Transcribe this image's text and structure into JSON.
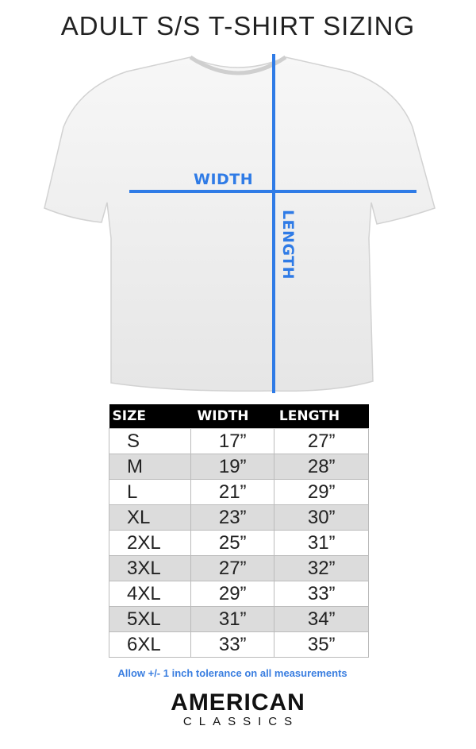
{
  "title": "ADULT S/S T-SHIRT SIZING",
  "diagram": {
    "width_label": "WIDTH",
    "length_label": "LENGTH",
    "line_color": "#2f7be6"
  },
  "table": {
    "headers": [
      "SIZE",
      "WIDTH",
      "LENGTH"
    ],
    "rows": [
      [
        "S",
        "17”",
        "27”"
      ],
      [
        "M",
        "19”",
        "28”"
      ],
      [
        "L",
        "21”",
        "29”"
      ],
      [
        "XL",
        "23”",
        "30”"
      ],
      [
        "2XL",
        "25”",
        "31”"
      ],
      [
        "3XL",
        "27”",
        "32”"
      ],
      [
        "4XL",
        "29”",
        "33”"
      ],
      [
        "5XL",
        "31”",
        "34”"
      ],
      [
        "6XL",
        "33”",
        "35”"
      ]
    ]
  },
  "note": "Allow +/- 1 inch tolerance on all measurements",
  "logo": {
    "line1": "AMERICAN",
    "line2": "CLASSICS"
  }
}
